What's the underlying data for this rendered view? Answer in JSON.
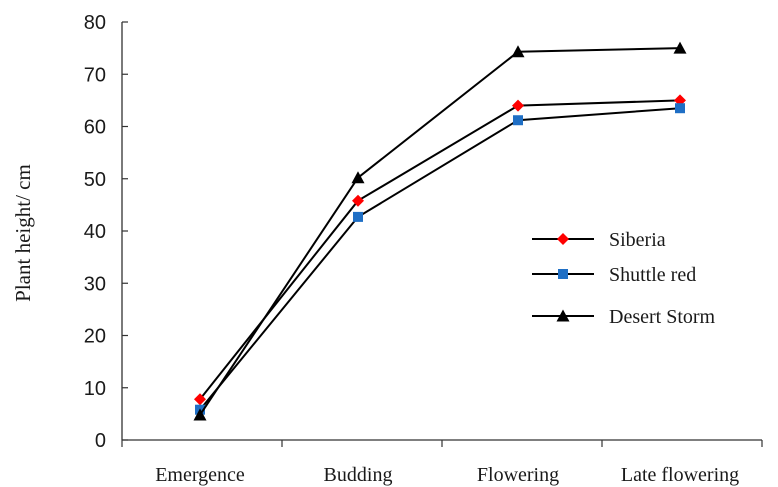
{
  "chart_data": {
    "type": "line",
    "title": "",
    "xlabel": "",
    "ylabel": "Plant height/ cm",
    "ylim": [
      0,
      80
    ],
    "yticks": [
      0,
      10,
      20,
      30,
      40,
      50,
      60,
      70,
      80
    ],
    "categories": [
      "Emergence",
      "Budding",
      "Flowering",
      "Late flowering"
    ],
    "grid": false,
    "legend_position": "right",
    "series": [
      {
        "name": "Siberia",
        "values": [
          7.8,
          45.8,
          64.0,
          65.0
        ],
        "line_color": "#000000",
        "marker": "diamond",
        "marker_color": "#ff0000"
      },
      {
        "name": "Shuttle red",
        "values": [
          5.8,
          42.7,
          61.2,
          63.5
        ],
        "line_color": "#000000",
        "marker": "square",
        "marker_color": "#1f6fc5"
      },
      {
        "name": "Desert Storm",
        "values": [
          4.8,
          50.2,
          74.3,
          75.0
        ],
        "line_color": "#000000",
        "marker": "triangle",
        "marker_color": "#000000"
      }
    ]
  }
}
